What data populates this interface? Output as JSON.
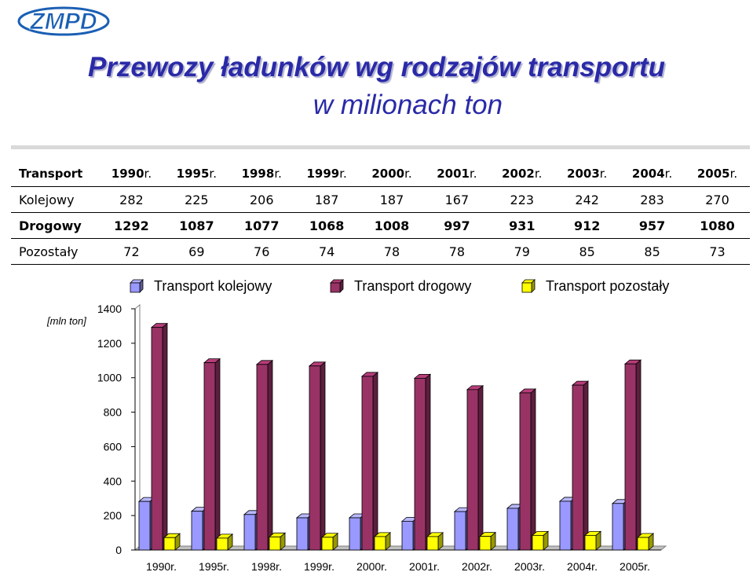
{
  "logo": {
    "text": "ZMPD"
  },
  "title": "Przewozy ładunków wg rodzajów transportu",
  "subtitle": "w milionach ton",
  "table": {
    "header_label": "Transport",
    "years": [
      {
        "num": "1990",
        "suffix": "r."
      },
      {
        "num": "1995",
        "suffix": "r."
      },
      {
        "num": "1998",
        "suffix": "r."
      },
      {
        "num": "1999",
        "suffix": "r."
      },
      {
        "num": "2000",
        "suffix": "r."
      },
      {
        "num": "2001",
        "suffix": "r."
      },
      {
        "num": "2002",
        "suffix": "r."
      },
      {
        "num": "2003",
        "suffix": "r."
      },
      {
        "num": "2004",
        "suffix": "r."
      },
      {
        "num": "2005",
        "suffix": "r."
      }
    ],
    "rows": [
      {
        "label": "Kolejowy",
        "values": [
          "282",
          "225",
          "206",
          "187",
          "187",
          "167",
          "223",
          "242",
          "283",
          "270"
        ]
      },
      {
        "label": "Drogowy",
        "values": [
          "1292",
          "1087",
          "1077",
          "1068",
          "1008",
          "997",
          "931",
          "912",
          "957",
          "1080"
        ]
      },
      {
        "label": "Pozostały",
        "values": [
          "72",
          "69",
          "76",
          "74",
          "78",
          "78",
          "79",
          "85",
          "85",
          "73"
        ]
      }
    ]
  },
  "chart_data": {
    "type": "bar",
    "categories": [
      "1990r.",
      "1995r.",
      "1998r.",
      "1999r.",
      "2000r.",
      "2001r.",
      "2002r.",
      "2003r.",
      "2004r.",
      "2005r."
    ],
    "series": [
      {
        "name": "Transport kolejowy",
        "values": [
          282,
          225,
          206,
          187,
          187,
          167,
          223,
          242,
          283,
          270
        ],
        "color": "#9999ff"
      },
      {
        "name": "Transport drogowy",
        "values": [
          1292,
          1087,
          1077,
          1068,
          1008,
          997,
          931,
          912,
          957,
          1080
        ],
        "color": "#993366"
      },
      {
        "name": "Transport pozostały",
        "values": [
          72,
          69,
          76,
          74,
          78,
          78,
          79,
          85,
          85,
          73
        ],
        "color": "#ffff00"
      }
    ],
    "ylabel": "[mln ton]",
    "yticks": [
      0,
      200,
      400,
      600,
      800,
      1000,
      1200,
      1400
    ],
    "ylim": [
      0,
      1400
    ],
    "legend_position": "top",
    "grid": false,
    "style": "3d-clustered-column"
  }
}
